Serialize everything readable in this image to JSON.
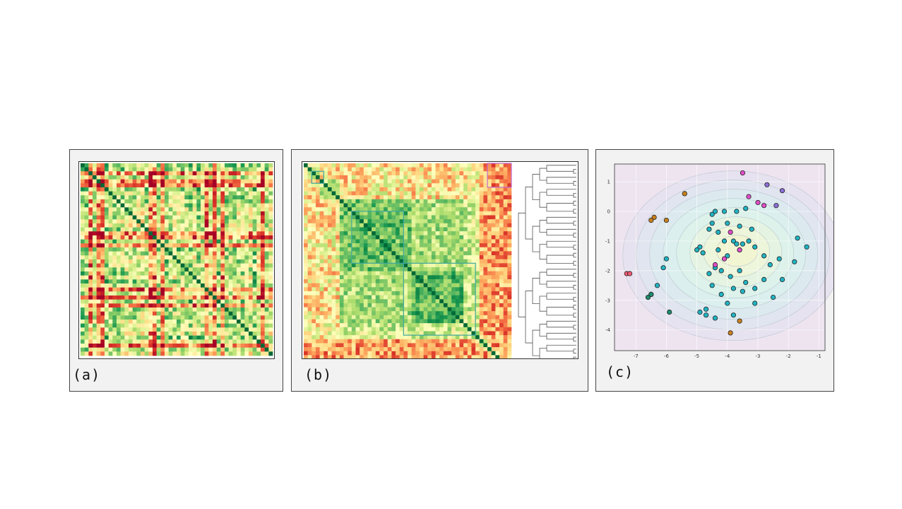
{
  "panels": {
    "a": {
      "label": "(a)"
    },
    "b": {
      "label": "(b)"
    },
    "c": {
      "label": "(c)"
    }
  },
  "chart_data": [
    {
      "type": "heatmap",
      "panel": "a",
      "rows": 48,
      "cols": 48,
      "colormap": "RdYlGn",
      "diagonal": "dark-green"
    },
    {
      "type": "heatmap",
      "panel": "b",
      "rows": 52,
      "cols": 52,
      "colormap": "RdYlGn",
      "diagonal": "dark-green",
      "ordering": "hierarchical-clustering",
      "dendrogram": "right",
      "cluster_box_colors": [
        "#3fa7a0",
        "#c36bd0"
      ]
    },
    {
      "type": "scatter",
      "panel": "c",
      "xlim": [
        -7.7,
        -0.8
      ],
      "ylim": [
        -4.7,
        1.6
      ],
      "xticks": [
        -7,
        -6,
        -5,
        -4,
        -3,
        -2,
        -1
      ],
      "yticks": [
        1,
        0,
        -1,
        -2,
        -3,
        -4
      ],
      "grid": true,
      "background": "density-contours",
      "series": [
        {
          "color": "#21b3c3",
          "points": [
            [
              -4.5,
              -0.1
            ],
            [
              -4.4,
              0.0
            ],
            [
              -4.1,
              0.0
            ],
            [
              -3.7,
              0.0
            ],
            [
              -3.4,
              0.1
            ],
            [
              -4.0,
              -0.4
            ],
            [
              -3.6,
              -0.5
            ],
            [
              -4.6,
              -0.6
            ],
            [
              -4.5,
              -0.4
            ],
            [
              -4.3,
              -0.7
            ],
            [
              -4.1,
              -1.0
            ],
            [
              -3.8,
              -1.0
            ],
            [
              -3.5,
              -1.1
            ],
            [
              -3.3,
              -1.0
            ],
            [
              -3.1,
              -1.2
            ],
            [
              -2.8,
              -1.5
            ],
            [
              -3.6,
              -1.3
            ],
            [
              -4.0,
              -1.5
            ],
            [
              -4.4,
              -1.9
            ],
            [
              -4.8,
              -1.4
            ],
            [
              -4.9,
              -1.2
            ],
            [
              -5.0,
              -1.3
            ],
            [
              -4.2,
              -2.0
            ],
            [
              -3.9,
              -2.2
            ],
            [
              -3.6,
              -2.0
            ],
            [
              -3.4,
              -2.4
            ],
            [
              -3.8,
              -2.6
            ],
            [
              -3.5,
              -2.7
            ],
            [
              -3.1,
              -2.6
            ],
            [
              -2.8,
              -2.3
            ],
            [
              -2.6,
              -1.8
            ],
            [
              -2.3,
              -1.6
            ],
            [
              -2.2,
              -2.3
            ],
            [
              -1.8,
              -1.7
            ],
            [
              -1.7,
              -0.9
            ],
            [
              -1.4,
              -1.2
            ],
            [
              -6.0,
              -1.6
            ],
            [
              -6.1,
              -1.9
            ],
            [
              -6.3,
              -2.5
            ],
            [
              -6.5,
              -2.8
            ],
            [
              -2.5,
              -2.9
            ],
            [
              -3.1,
              -3.1
            ],
            [
              -4.0,
              -3.1
            ],
            [
              -4.2,
              -2.8
            ],
            [
              -4.7,
              -3.3
            ],
            [
              -4.7,
              -3.5
            ],
            [
              -4.9,
              -3.4
            ],
            [
              -3.8,
              -3.5
            ],
            [
              -4.4,
              -3.6
            ],
            [
              -4.5,
              -2.5
            ],
            [
              -3.7,
              -1.1
            ],
            [
              -3.2,
              -0.6
            ],
            [
              -4.3,
              -1.3
            ],
            [
              -4.6,
              -2.1
            ]
          ]
        },
        {
          "color": "#e04ec9",
          "points": [
            [
              -3.5,
              1.3
            ],
            [
              -3.3,
              0.5
            ],
            [
              -3.0,
              0.3
            ],
            [
              -2.8,
              0.2
            ],
            [
              -3.9,
              -0.7
            ],
            [
              -3.6,
              -1.3
            ],
            [
              -4.1,
              -1.6
            ],
            [
              -4.4,
              -1.8
            ]
          ]
        },
        {
          "color": "#8a6fd6",
          "points": [
            [
              -2.7,
              0.9
            ],
            [
              -2.2,
              0.7
            ],
            [
              -2.4,
              0.2
            ]
          ]
        },
        {
          "color": "#1e8a6e",
          "points": [
            [
              -6.6,
              -2.9
            ],
            [
              -5.9,
              -3.4
            ],
            [
              -6.5,
              -2.8
            ]
          ]
        },
        {
          "color": "#c8801e",
          "points": [
            [
              -5.4,
              0.6
            ],
            [
              -6.4,
              -0.2
            ],
            [
              -6.5,
              -0.3
            ],
            [
              -6.0,
              -0.3
            ],
            [
              -3.6,
              -3.7
            ],
            [
              -3.9,
              -4.1
            ]
          ]
        },
        {
          "color": "#f05a72",
          "points": [
            [
              -7.3,
              -2.1
            ],
            [
              -7.2,
              -2.1
            ]
          ]
        }
      ]
    }
  ]
}
